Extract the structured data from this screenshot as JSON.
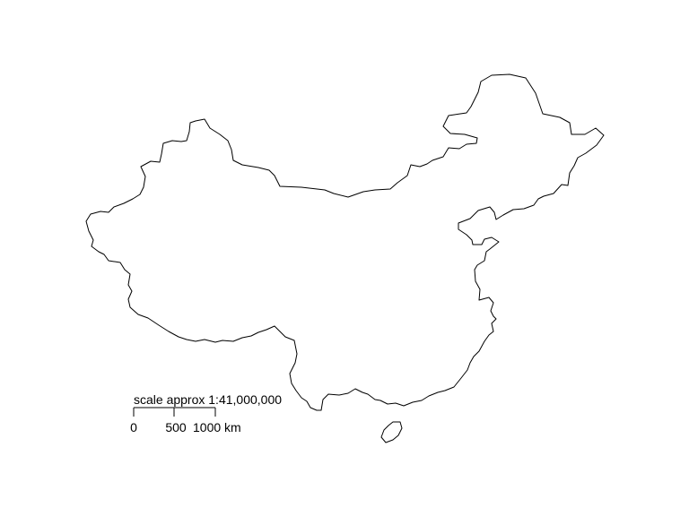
{
  "map": {
    "region_outline": "china-mainland",
    "island_outline": "hainan-island",
    "stroke_color": "#000000",
    "fill_color": "#ffffff",
    "background": "#ffffff"
  },
  "scalebar": {
    "caption": "scale approx 1:41,000,000",
    "tick_labels": [
      "0",
      "500",
      "1000 km"
    ]
  }
}
